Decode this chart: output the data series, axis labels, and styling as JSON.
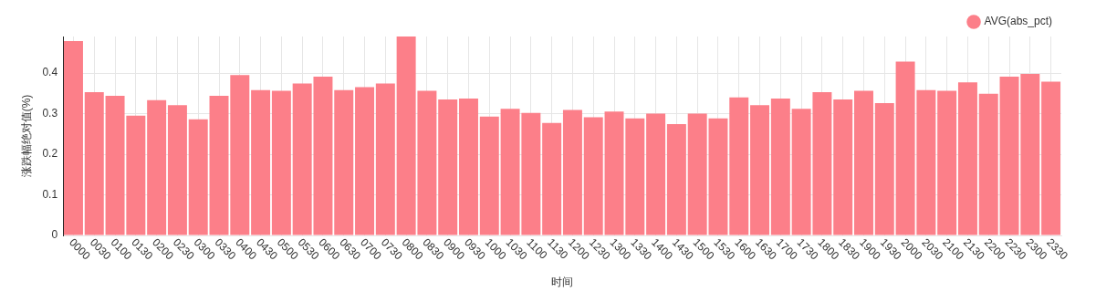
{
  "chart_data": {
    "type": "bar",
    "xlabel": "时间",
    "ylabel": "涨跌幅绝对值(%)",
    "categories": [
      "0000",
      "0030",
      "0100",
      "0130",
      "0200",
      "0230",
      "0300",
      "0330",
      "0400",
      "0430",
      "0500",
      "0530",
      "0600",
      "0630",
      "0700",
      "0730",
      "0800",
      "0830",
      "0900",
      "0930",
      "1000",
      "1030",
      "1100",
      "1130",
      "1200",
      "1230",
      "1300",
      "1330",
      "1400",
      "1430",
      "1500",
      "1530",
      "1600",
      "1630",
      "1700",
      "1730",
      "1800",
      "1830",
      "1900",
      "1930",
      "2000",
      "2030",
      "2100",
      "2130",
      "2200",
      "2230",
      "2300",
      "2330"
    ],
    "series": [
      {
        "name": "AVG(abs_pct)",
        "color": "#fc7f89",
        "values": [
          0.479,
          0.353,
          0.344,
          0.295,
          0.333,
          0.321,
          0.286,
          0.344,
          0.395,
          0.358,
          0.356,
          0.374,
          0.391,
          0.358,
          0.365,
          0.374,
          0.49,
          0.356,
          0.335,
          0.337,
          0.293,
          0.312,
          0.302,
          0.277,
          0.309,
          0.291,
          0.305,
          0.288,
          0.3,
          0.274,
          0.3,
          0.288,
          0.34,
          0.321,
          0.337,
          0.312,
          0.353,
          0.335,
          0.356,
          0.326,
          0.428,
          0.358,
          0.356,
          0.377,
          0.349,
          0.391,
          0.398,
          0.379
        ]
      }
    ],
    "ylim": [
      0,
      0.49
    ],
    "yticks": [
      0,
      0.1,
      0.2,
      0.3,
      0.4
    ],
    "grid": true,
    "legend": "top right"
  }
}
